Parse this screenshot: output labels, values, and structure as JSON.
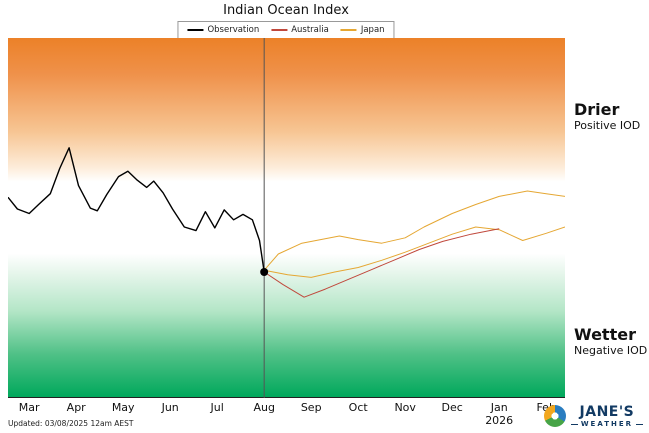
{
  "title": "Indian Ocean Index",
  "legend": {
    "items": [
      {
        "label": "Observation",
        "color": "#000000"
      },
      {
        "label": "Australia",
        "color": "#c0483c"
      },
      {
        "label": "Japan",
        "color": "#e5a733"
      }
    ]
  },
  "annotations": {
    "drier_title": "Drier",
    "drier_sub": "Positive IOD",
    "wetter_title": "Wetter",
    "wetter_sub": "Negative IOD"
  },
  "footer": {
    "updated": "Updated: 03/08/2025 12am AEST"
  },
  "brand": {
    "name": "JANE'S",
    "sub": "WEATHER"
  },
  "chart_data": {
    "type": "line",
    "title": "Indian Ocean Index",
    "x_tick_labels": [
      "Mar",
      "Apr",
      "May",
      "Jun",
      "Jul",
      "Aug",
      "Sep",
      "Oct",
      "Nov",
      "Dec",
      "Jan",
      "Feb"
    ],
    "year_label": {
      "under_tick": "Jan",
      "under_tick_index": 10,
      "text": "2026"
    },
    "xlim": [
      -0.45,
      11.4
    ],
    "ylim": [
      -2,
      2
    ],
    "background_bands": {
      "drier_positive_above": 0.4,
      "wetter_negative_below": -0.4,
      "top_color": "#ec8128",
      "bottom_color": "#00a85c"
    },
    "forecast_start_vline": {
      "x": 5,
      "color": "#555555"
    },
    "observation_end_marker": {
      "x": 5,
      "y": -0.6,
      "color": "#000000"
    },
    "series": [
      {
        "name": "Japan",
        "color": "#e5a733",
        "width": 1,
        "x": [
          5.0,
          5.3,
          5.8,
          6.2,
          6.6,
          7.0,
          7.5,
          8.0,
          8.4,
          9.0,
          9.5,
          10.0,
          10.6,
          11.0,
          11.4
        ],
        "y": [
          -0.58,
          -0.4,
          -0.28,
          -0.24,
          -0.2,
          -0.24,
          -0.28,
          -0.22,
          -0.1,
          0.05,
          0.15,
          0.24,
          0.3,
          0.27,
          0.24
        ]
      },
      {
        "name": "Japan (second trace)",
        "color": "#e5a733",
        "width": 1,
        "x": [
          5.0,
          5.5,
          6.0,
          6.5,
          7.0,
          7.5,
          8.0,
          8.5,
          9.0,
          9.5,
          10.0,
          10.5,
          11.0,
          11.4
        ],
        "y": [
          -0.58,
          -0.63,
          -0.66,
          -0.6,
          -0.55,
          -0.47,
          -0.38,
          -0.28,
          -0.18,
          -0.1,
          -0.13,
          -0.25,
          -0.17,
          -0.1
        ]
      },
      {
        "name": "Australia",
        "color": "#c0483c",
        "width": 1,
        "x": [
          5.0,
          5.4,
          5.85,
          6.3,
          6.8,
          7.3,
          7.8,
          8.3,
          8.8,
          9.4,
          10.0
        ],
        "y": [
          -0.6,
          -0.74,
          -0.88,
          -0.79,
          -0.68,
          -0.57,
          -0.46,
          -0.35,
          -0.26,
          -0.18,
          -0.12
        ]
      },
      {
        "name": "Observation",
        "color": "#000000",
        "width": 1.4,
        "x": [
          -0.45,
          -0.25,
          0.0,
          0.2,
          0.45,
          0.65,
          0.85,
          1.05,
          1.3,
          1.45,
          1.65,
          1.9,
          2.1,
          2.3,
          2.5,
          2.65,
          2.85,
          3.05,
          3.3,
          3.55,
          3.75,
          3.95,
          4.15,
          4.35,
          4.55,
          4.75,
          4.9,
          5.0
        ],
        "y": [
          0.23,
          0.1,
          0.05,
          0.15,
          0.27,
          0.55,
          0.78,
          0.36,
          0.11,
          0.08,
          0.26,
          0.46,
          0.52,
          0.42,
          0.34,
          0.41,
          0.28,
          0.1,
          -0.1,
          -0.14,
          0.07,
          -0.11,
          0.09,
          -0.02,
          0.04,
          -0.02,
          -0.25,
          -0.6
        ]
      }
    ]
  }
}
